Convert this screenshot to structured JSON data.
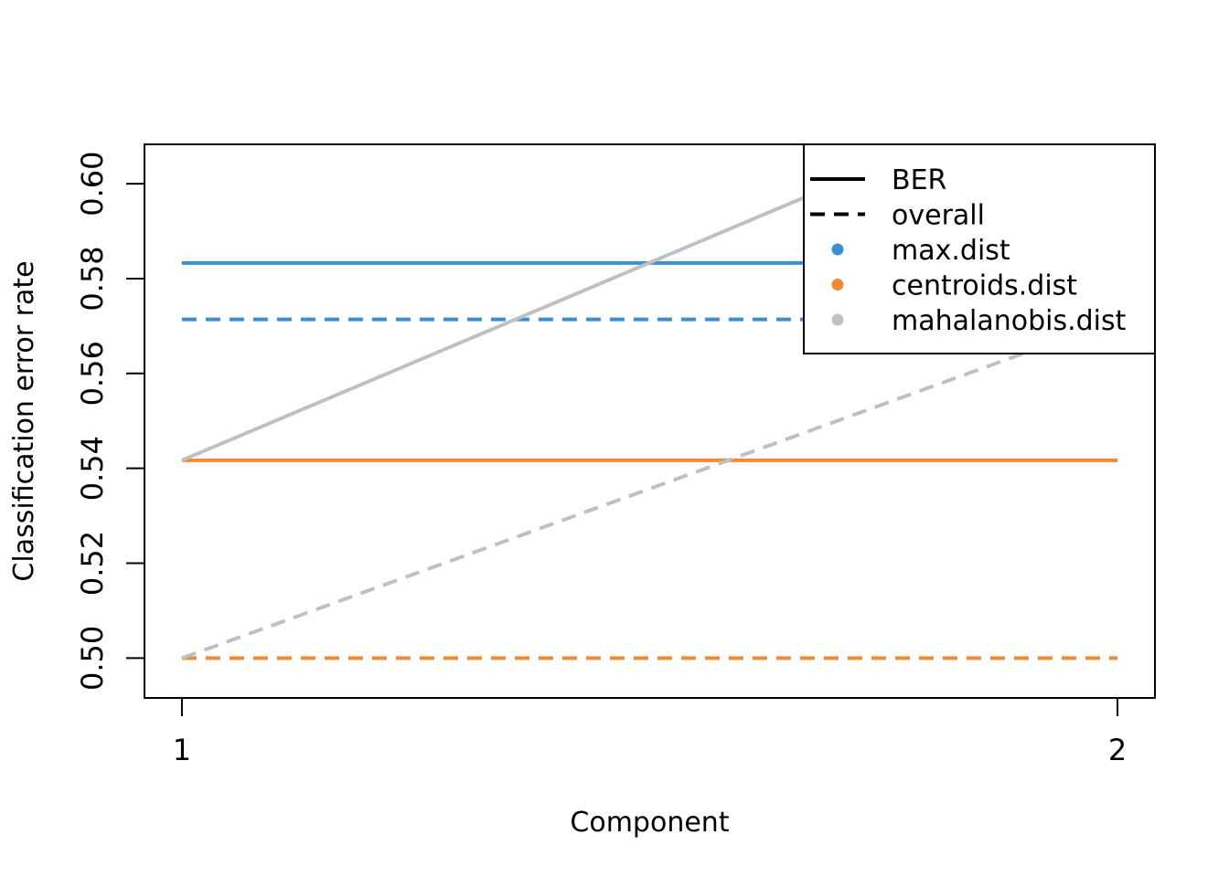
{
  "chart_data": {
    "type": "line",
    "title": "",
    "xlabel": "Component",
    "ylabel": "Classification error rate",
    "x": [
      1,
      2
    ],
    "x_ticks": [
      "1",
      "2"
    ],
    "xlim": [
      0.96,
      2.04
    ],
    "ylim": [
      0.4916,
      0.6083
    ],
    "y_ticks": [
      0.5,
      0.52,
      0.54,
      0.56,
      0.58,
      0.6
    ],
    "y_tick_labels": [
      "0.50",
      "0.52",
      "0.54",
      "0.56",
      "0.58",
      "0.60"
    ],
    "grid": false,
    "legend_position": "top-right",
    "series": [
      {
        "distance": "max.dist",
        "measure": "BER",
        "color": "#3A8FD4",
        "dash": "solid",
        "values": [
          0.5833,
          0.5833
        ]
      },
      {
        "distance": "max.dist",
        "measure": "overall",
        "color": "#3A8FD4",
        "dash": "dashed",
        "values": [
          0.5714,
          0.5714
        ]
      },
      {
        "distance": "centroids.dist",
        "measure": "BER",
        "color": "#F28B30",
        "dash": "solid",
        "values": [
          0.5417,
          0.5417
        ]
      },
      {
        "distance": "centroids.dist",
        "measure": "overall",
        "color": "#F28B30",
        "dash": "dashed",
        "values": [
          0.5,
          0.5
        ]
      },
      {
        "distance": "mahalanobis.dist",
        "measure": "BER",
        "color": "#C0C0C0",
        "dash": "solid",
        "values": [
          0.5417,
          0.625
        ]
      },
      {
        "distance": "mahalanobis.dist",
        "measure": "overall",
        "color": "#C0C0C0",
        "dash": "dashed",
        "values": [
          0.5,
          0.5714
        ]
      }
    ],
    "legend": {
      "line_types": [
        {
          "label": "BER",
          "dash": "solid",
          "color": "#000000"
        },
        {
          "label": "overall",
          "dash": "dashed",
          "color": "#000000"
        }
      ],
      "colors": [
        {
          "label": "max.dist",
          "color": "#3A8FD4"
        },
        {
          "label": "centroids.dist",
          "color": "#F28B30"
        },
        {
          "label": "mahalanobis.dist",
          "color": "#C0C0C0"
        }
      ]
    }
  }
}
